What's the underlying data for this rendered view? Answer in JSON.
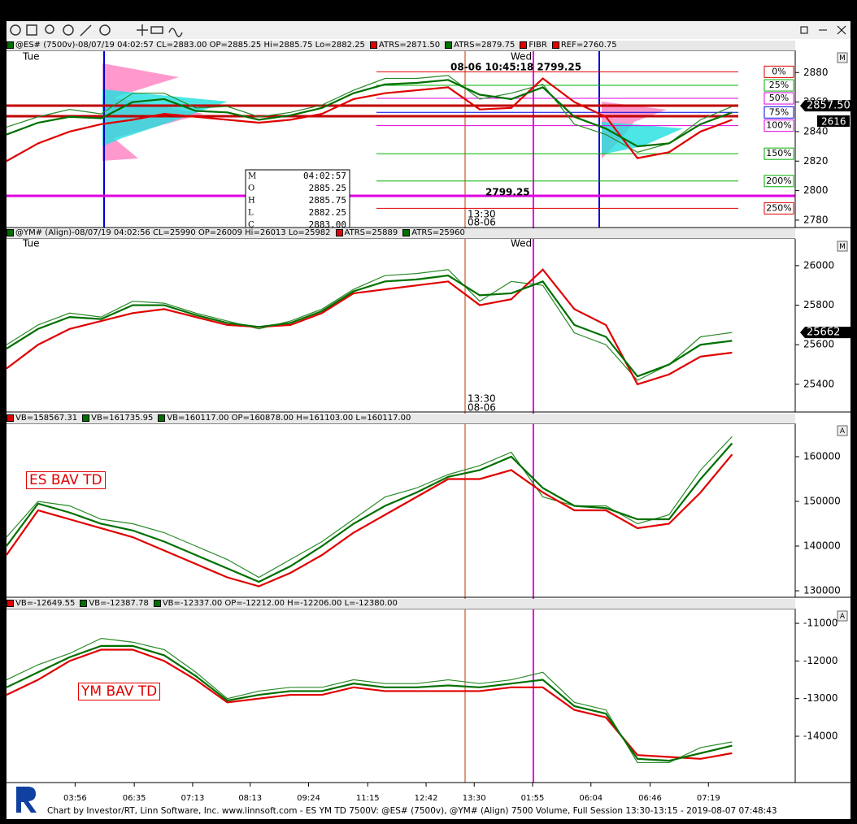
{
  "chart_data": [
    {
      "type": "line",
      "header": [
        {
          "text": "@ES# (7500v)-08/07/19 04:02:57 CL=2883.00 OP=2885.25 Hi=2885.75 Lo=2882.25",
          "color": "#007000"
        },
        {
          "text": "ATRS=2871.50",
          "color": "#e00000"
        },
        {
          "text": "ATRS=2879.75",
          "color": "#007000"
        },
        {
          "text": "FIBR",
          "color": "#e00000"
        },
        {
          "text": "REF=2760.75",
          "color": "#e00000"
        }
      ],
      "scale_mode": "M",
      "annotations": [
        "Tue",
        "Wed",
        "08-06 10:45:18  2799.25",
        "2799.25",
        "13:30",
        "08-06",
        "2616"
      ],
      "data_window": [
        [
          "M",
          "04:02:57"
        ],
        [
          "O",
          "2885.25"
        ],
        [
          "H",
          "2885.75"
        ],
        [
          "L",
          "2882.25"
        ],
        [
          "C",
          "2883.00"
        ]
      ],
      "xlim": [
        0,
        100
      ],
      "x": [
        0,
        4,
        8,
        12,
        16,
        20,
        24,
        28,
        32,
        36,
        40,
        44,
        48,
        52,
        56,
        60,
        64,
        68,
        72,
        76,
        80,
        84,
        88,
        92
      ],
      "ylim": [
        2775,
        2895
      ],
      "yticks": [
        2780,
        2800,
        2820,
        2840,
        2860,
        2880
      ],
      "series": [
        {
          "color": "#2a8a2a",
          "values": [
            2843,
            2850,
            2855,
            2852,
            2866,
            2866,
            2856,
            2857,
            2850,
            2853,
            2858,
            2868,
            2876,
            2876,
            2878,
            2862,
            2866,
            2872,
            2845,
            2838,
            2826,
            2832,
            2848,
            2857
          ]
        },
        {
          "color": "#e00000",
          "values": [
            2820,
            2832,
            2840,
            2845,
            2848,
            2852,
            2850,
            2848,
            2846,
            2848,
            2852,
            2862,
            2866,
            2868,
            2870,
            2855,
            2856,
            2876,
            2860,
            2850,
            2822,
            2826,
            2840,
            2848
          ]
        },
        {
          "color": "#007000",
          "values": [
            2838,
            2846,
            2850,
            2849,
            2860,
            2862,
            2854,
            2853,
            2848,
            2851,
            2856,
            2866,
            2872,
            2873,
            2875,
            2865,
            2862,
            2870,
            2850,
            2842,
            2830,
            2832,
            2845,
            2853
          ]
        }
      ],
      "fib": [
        {
          "label": "0%",
          "value": 2880.5,
          "color": "#e00000"
        },
        {
          "label": "25%",
          "value": 2871.3,
          "color": "#00b000"
        },
        {
          "label": "50%",
          "value": 2862.5,
          "color": "#e000e0"
        },
        {
          "label": "75%",
          "value": 2853,
          "color": "#0000e0"
        },
        {
          "label": "100%",
          "value": 2844,
          "color": "#e000e0"
        },
        {
          "label": "150%",
          "value": 2825,
          "color": "#00b000"
        },
        {
          "label": "200%",
          "value": 2806.5,
          "color": "#00b000"
        },
        {
          "label": "250%",
          "value": 2788,
          "color": "#e00000"
        }
      ],
      "tags": [
        {
          "value": 2857.5,
          "label": "2857.50"
        }
      ]
    },
    {
      "type": "line",
      "header": [
        {
          "text": "@YM# (Align)-08/07/19 04:02:56 CL=25990 OP=26009 Hi=26013 Lo=25982",
          "color": "#007000"
        },
        {
          "text": "ATRS=25889",
          "color": "#e00000"
        },
        {
          "text": "ATRS=25960",
          "color": "#007000"
        }
      ],
      "scale_mode": "M",
      "annotations": [
        "Tue",
        "Wed",
        "13:30",
        "08-06"
      ],
      "xlim": [
        0,
        100
      ],
      "x": [
        0,
        4,
        8,
        12,
        16,
        20,
        24,
        28,
        32,
        36,
        40,
        44,
        48,
        52,
        56,
        60,
        64,
        68,
        72,
        76,
        80,
        84,
        88,
        92
      ],
      "ylim": [
        25260,
        26135
      ],
      "yticks": [
        25400,
        25600,
        25800,
        26000
      ],
      "series": [
        {
          "color": "#2a8a2a",
          "values": [
            25600,
            25700,
            25760,
            25740,
            25820,
            25810,
            25760,
            25720,
            25680,
            25720,
            25780,
            25880,
            25950,
            25960,
            25980,
            25820,
            25920,
            25900,
            25660,
            25600,
            25420,
            25500,
            25640,
            25662
          ]
        },
        {
          "color": "#e00000",
          "values": [
            25480,
            25600,
            25680,
            25720,
            25760,
            25780,
            25740,
            25700,
            25690,
            25700,
            25760,
            25860,
            25880,
            25900,
            25920,
            25800,
            25830,
            25980,
            25780,
            25700,
            25400,
            25450,
            25540,
            25560
          ]
        },
        {
          "color": "#007000",
          "values": [
            25580,
            25680,
            25740,
            25730,
            25800,
            25800,
            25750,
            25710,
            25690,
            25710,
            25770,
            25870,
            25920,
            25930,
            25950,
            25850,
            25860,
            25920,
            25700,
            25640,
            25440,
            25500,
            25600,
            25620
          ]
        }
      ],
      "tags": [
        {
          "value": 25662,
          "label": "25662"
        }
      ]
    },
    {
      "type": "line",
      "header": [
        {
          "text": "VB=158567.31",
          "color": "#e00000"
        },
        {
          "text": "VB=161735.95",
          "color": "#007000"
        },
        {
          "text": "VB=160117.00 OP=160878.00 H=161103.00 L=160117.00",
          "color": "#007000"
        }
      ],
      "scale_mode": "A",
      "label": "ES BAV TD",
      "xlim": [
        0,
        100
      ],
      "x": [
        0,
        4,
        8,
        12,
        16,
        20,
        24,
        28,
        32,
        36,
        40,
        44,
        48,
        52,
        56,
        60,
        64,
        68,
        72,
        76,
        80,
        84,
        88,
        92
      ],
      "ylim": [
        128550,
        167450
      ],
      "yticks": [
        130000,
        140000,
        150000,
        160000
      ],
      "series": [
        {
          "color": "#2a8a2a",
          "values": [
            142000,
            150000,
            149000,
            146000,
            145000,
            143000,
            140000,
            137000,
            133000,
            137000,
            141000,
            146000,
            151000,
            153000,
            156000,
            158000,
            161000,
            151000,
            149000,
            149000,
            145000,
            147000,
            157000,
            164500
          ]
        },
        {
          "color": "#e00000",
          "values": [
            138000,
            148000,
            146000,
            144000,
            142000,
            139000,
            136000,
            133000,
            131000,
            134000,
            138000,
            143000,
            147000,
            151000,
            155000,
            155000,
            157000,
            152000,
            148000,
            148000,
            144000,
            145000,
            152000,
            160500
          ]
        },
        {
          "color": "#007000",
          "values": [
            140000,
            149500,
            147500,
            145000,
            143500,
            141000,
            138000,
            135000,
            132000,
            135500,
            140000,
            145000,
            149000,
            152000,
            155500,
            157000,
            160000,
            153000,
            149000,
            148500,
            146000,
            146000,
            155000,
            163000
          ]
        }
      ]
    },
    {
      "type": "line",
      "header": [
        {
          "text": "VB=-12649.55",
          "color": "#e00000"
        },
        {
          "text": "VB=-12387.78",
          "color": "#007000"
        },
        {
          "text": "VB=-12337.00 OP=-12212.00 H=-12206.00 L=-12380.00",
          "color": "#007000"
        }
      ],
      "scale_mode": "A",
      "label": "YM BAV TD",
      "xlim": [
        0,
        100
      ],
      "x": [
        0,
        4,
        8,
        12,
        16,
        20,
        24,
        28,
        32,
        36,
        40,
        44,
        48,
        52,
        56,
        60,
        64,
        68,
        72,
        76,
        80,
        84,
        88,
        92
      ],
      "ylim": [
        -15230,
        -10610
      ],
      "yticks": [
        -14000,
        -13000,
        -12000,
        -11000
      ],
      "xticks": [
        {
          "value": 8.7,
          "label": "03:56"
        },
        {
          "value": 16.2,
          "label": "06:35"
        },
        {
          "value": 23.6,
          "label": "07:13"
        },
        {
          "value": 30.9,
          "label": "08:13"
        },
        {
          "value": 38.3,
          "label": "09:24"
        },
        {
          "value": 45.8,
          "label": "11:15"
        },
        {
          "value": 53.2,
          "label": "12:42"
        },
        {
          "value": 59.3,
          "label": "13:30"
        },
        {
          "value": 66.7,
          "label": "01:55"
        },
        {
          "value": 74.1,
          "label": "06:04"
        },
        {
          "value": 81.6,
          "label": "06:46"
        },
        {
          "value": 89.0,
          "label": "07:19"
        }
      ],
      "series": [
        {
          "color": "#2a8a2a",
          "values": [
            -12500,
            -12100,
            -11800,
            -11400,
            -11500,
            -11700,
            -12300,
            -13000,
            -12800,
            -12700,
            -12700,
            -12500,
            -12600,
            -12600,
            -12500,
            -12600,
            -12500,
            -12300,
            -13100,
            -13300,
            -14700,
            -14700,
            -14300,
            -14150
          ]
        },
        {
          "color": "#e00000",
          "values": [
            -12900,
            -12500,
            -12000,
            -11700,
            -11700,
            -12000,
            -12500,
            -13100,
            -13000,
            -12900,
            -12900,
            -12700,
            -12800,
            -12800,
            -12800,
            -12800,
            -12700,
            -12700,
            -13300,
            -13500,
            -14500,
            -14550,
            -14600,
            -14450
          ]
        },
        {
          "color": "#007000",
          "values": [
            -12700,
            -12300,
            -11900,
            -11600,
            -11600,
            -11850,
            -12400,
            -13050,
            -12900,
            -12800,
            -12800,
            -12600,
            -12700,
            -12700,
            -12650,
            -12700,
            -12600,
            -12500,
            -13200,
            -13400,
            -14600,
            -14650,
            -14450,
            -14250
          ]
        }
      ]
    }
  ],
  "footer": "Chart by Investor/RT, Linn Software, Inc. www.linnsoft.com - ES YM TD 7500V: @ES# (7500v), @YM# (Align) 7500 Volume, Full Session 13:30-13:15 - 2019-08-07 07:48:43"
}
